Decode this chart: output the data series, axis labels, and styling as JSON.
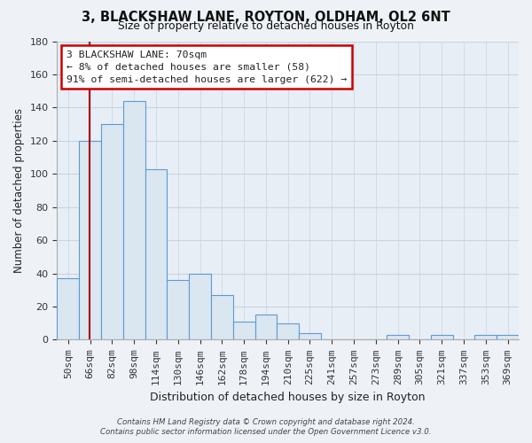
{
  "title": "3, BLACKSHAW LANE, ROYTON, OLDHAM, OL2 6NT",
  "subtitle": "Size of property relative to detached houses in Royton",
  "xlabel": "Distribution of detached houses by size in Royton",
  "ylabel": "Number of detached properties",
  "bar_color": "#dae6f0",
  "bar_edge_color": "#5b9bd5",
  "categories": [
    "50sqm",
    "66sqm",
    "82sqm",
    "98sqm",
    "114sqm",
    "130sqm",
    "146sqm",
    "162sqm",
    "178sqm",
    "194sqm",
    "210sqm",
    "225sqm",
    "241sqm",
    "257sqm",
    "273sqm",
    "289sqm",
    "305sqm",
    "321sqm",
    "337sqm",
    "353sqm",
    "369sqm"
  ],
  "values": [
    37,
    120,
    130,
    144,
    103,
    36,
    40,
    27,
    11,
    15,
    10,
    4,
    0,
    0,
    0,
    3,
    0,
    3,
    0,
    3,
    3
  ],
  "ylim": [
    0,
    180
  ],
  "yticks": [
    0,
    20,
    40,
    60,
    80,
    100,
    120,
    140,
    160,
    180
  ],
  "vline_x": 0.98,
  "vline_color": "#aa0000",
  "annotation_text": "3 BLACKSHAW LANE: 70sqm\n← 8% of detached houses are smaller (58)\n91% of semi-detached houses are larger (622) →",
  "footer1": "Contains HM Land Registry data © Crown copyright and database right 2024.",
  "footer2": "Contains public sector information licensed under the Open Government Licence v3.0.",
  "bg_color": "#eef2f7",
  "plot_bg_color": "#e8eef5",
  "grid_color": "#c8d4e0",
  "title_color": "#111111",
  "text_color": "#222222"
}
